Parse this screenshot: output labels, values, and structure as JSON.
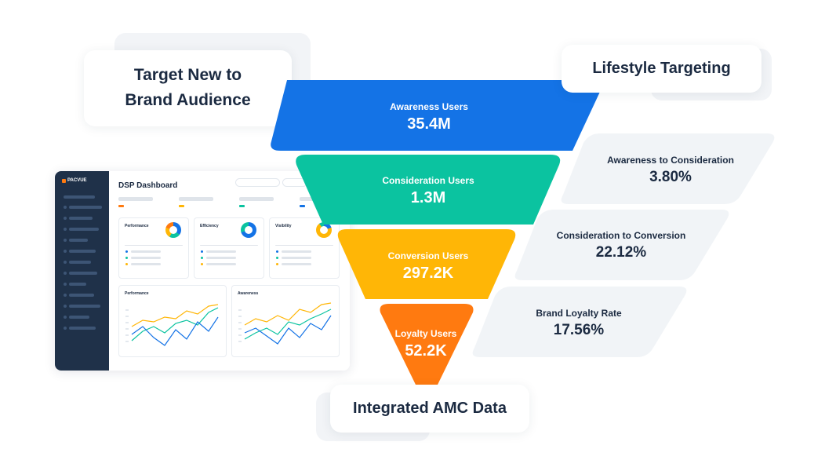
{
  "callouts": {
    "target_line1": "Target New to",
    "target_line2": "Brand Audience",
    "lifestyle": "Lifestyle Targeting",
    "integrated": "Integrated AMC Data"
  },
  "funnel": [
    {
      "label": "Awareness Users",
      "value": "35.4M",
      "color": "#1473e6"
    },
    {
      "label": "Consideration Users",
      "value": "1.3M",
      "color": "#0bc3a0"
    },
    {
      "label": "Conversion Users",
      "value": "297.2K",
      "color": "#ffb606"
    },
    {
      "label": "Loyalty Users",
      "value": "52.2K",
      "color": "#ff7a10"
    }
  ],
  "rates": [
    {
      "label": "Awareness to Consideration",
      "value": "3.80%"
    },
    {
      "label": "Consideration to Conversion",
      "value": "22.12%"
    },
    {
      "label": "Brand Loyalty Rate",
      "value": "17.56%"
    }
  ],
  "dashboard": {
    "brand": "PACVUE",
    "title": "DSP Dashboard",
    "panels": [
      "Performance",
      "Efficiency",
      "Visibility"
    ],
    "charts": [
      "Performance",
      "Awareness"
    ]
  },
  "colors": {
    "dark_navy": "#1f3149",
    "text": "#1b2a41",
    "chart_blue": "#1473e6",
    "chart_teal": "#0bc3a0",
    "chart_yellow": "#ffb606",
    "chart_orange": "#ff7a10"
  }
}
